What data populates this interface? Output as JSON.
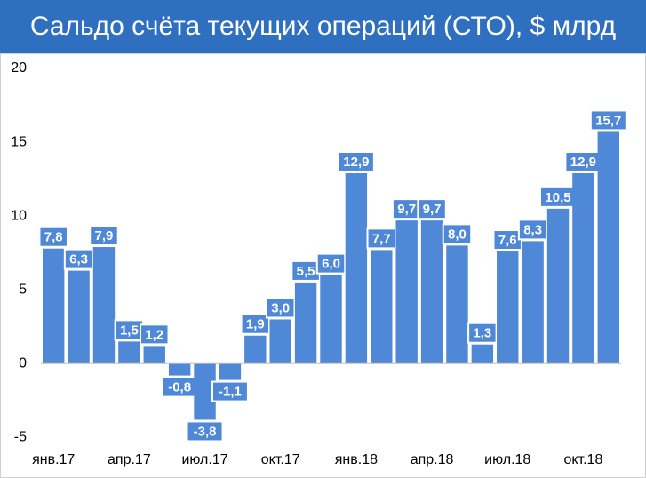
{
  "chart_data": {
    "type": "bar",
    "title": "Сальдо счёта текущих операций (СТО), $ млрд",
    "categories": [
      "янв.17",
      null,
      null,
      "апр.17",
      null,
      null,
      "июл.17",
      null,
      null,
      "окт.17",
      null,
      null,
      "янв.18",
      null,
      null,
      "апр.18",
      null,
      null,
      "июл.18",
      null,
      null,
      "окт.18",
      null
    ],
    "values": [
      7.8,
      6.3,
      7.9,
      1.5,
      1.2,
      -0.8,
      -3.8,
      -1.1,
      1.9,
      3.0,
      5.5,
      6.0,
      12.9,
      7.7,
      9.7,
      9.7,
      8.0,
      1.3,
      7.6,
      8.3,
      10.5,
      12.9,
      15.7
    ],
    "value_labels": [
      "7,8",
      "6,3",
      "7,9",
      "1,5",
      "1,2",
      "-0,8",
      "-3,8",
      "-1,1",
      "1,9",
      "3,0",
      "5,5",
      "6,0",
      "12,9",
      "7,7",
      "9,7",
      "9,7",
      "8,0",
      "1,3",
      "7,6",
      "8,3",
      "10,5",
      "12,9",
      "15,7"
    ],
    "color": "#4f88d6",
    "ylim": [
      -6,
      20
    ],
    "yticks": [
      -5,
      0,
      5,
      10,
      15,
      20
    ],
    "grid": false
  }
}
